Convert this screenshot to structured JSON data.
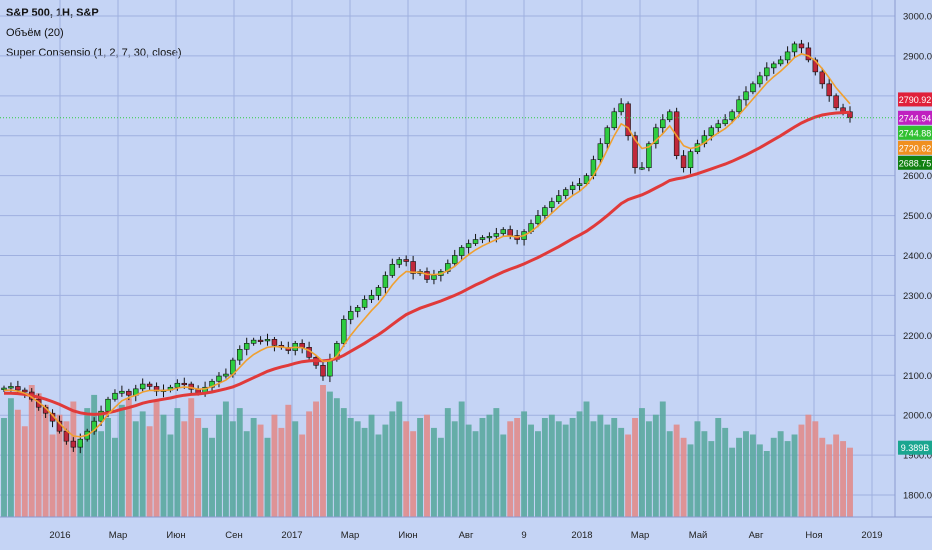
{
  "header": {
    "title": "S&P 500, 1H, S&P",
    "volume_indicator": "Объём (20)",
    "consensio_indicator": "Super Consensio (1, 2, 7, 30, close)"
  },
  "colors": {
    "background": "#c5d4f5",
    "grid": "#9fb0e0",
    "up_candle": "#2ecc40",
    "down_candle": "#c0283a",
    "ma_fast": "#f0a030",
    "ma_slow": "#e03a3a",
    "volume_up": "#5aa9a0",
    "volume_down": "#e08c8c",
    "current_line": "#2ecc40"
  },
  "chart_data": {
    "type": "candlestick",
    "symbol": "S&P 500, 1H, S&P",
    "x_ticks": [
      "2016",
      "Мар",
      "Июн",
      "Сен",
      "2017",
      "Мар",
      "Июн",
      "Авг",
      "9",
      "2018",
      "Мар",
      "Май",
      "Авг",
      "Ноя",
      "2019"
    ],
    "y_ticks": [
      "3000.00",
      "2900.00",
      "2800.00",
      "2700.00",
      "2600.00",
      "2500.00",
      "2400.00",
      "2300.00",
      "2200.00",
      "2100.00",
      "2000.00",
      "1900.00",
      "1800.00"
    ],
    "ylim": [
      1745,
      3040
    ],
    "close_series": [
      2068,
      2072,
      2063,
      2058,
      2040,
      2020,
      2005,
      1985,
      1960,
      1935,
      1920,
      1940,
      1960,
      1985,
      2010,
      2040,
      2055,
      2060,
      2050,
      2066,
      2078,
      2072,
      2060,
      2063,
      2070,
      2080,
      2078,
      2065,
      2055,
      2070,
      2085,
      2098,
      2103,
      2138,
      2165,
      2180,
      2188,
      2186,
      2190,
      2175,
      2170,
      2162,
      2180,
      2170,
      2145,
      2125,
      2098,
      2140,
      2180,
      2240,
      2260,
      2270,
      2290,
      2300,
      2320,
      2350,
      2378,
      2390,
      2385,
      2355,
      2360,
      2340,
      2350,
      2360,
      2380,
      2400,
      2420,
      2430,
      2440,
      2445,
      2448,
      2455,
      2465,
      2450,
      2440,
      2460,
      2480,
      2500,
      2520,
      2535,
      2550,
      2565,
      2575,
      2580,
      2600,
      2640,
      2680,
      2720,
      2760,
      2780,
      2700,
      2620,
      2620,
      2680,
      2720,
      2740,
      2760,
      2650,
      2620,
      2660,
      2680,
      2700,
      2720,
      2730,
      2740,
      2760,
      2790,
      2810,
      2830,
      2850,
      2870,
      2880,
      2890,
      2910,
      2930,
      2920,
      2890,
      2860,
      2830,
      2800,
      2770,
      2760,
      2745
    ],
    "ma_fast_series": [
      2062,
      2063,
      2060,
      2055,
      2045,
      2032,
      2018,
      2000,
      1980,
      1962,
      1948,
      1946,
      1950,
      1962,
      1980,
      2002,
      2020,
      2036,
      2044,
      2050,
      2058,
      2062,
      2062,
      2062,
      2063,
      2068,
      2071,
      2069,
      2065,
      2066,
      2072,
      2080,
      2088,
      2102,
      2120,
      2138,
      2152,
      2162,
      2170,
      2172,
      2171,
      2168,
      2170,
      2169,
      2162,
      2150,
      2135,
      2136,
      2148,
      2175,
      2200,
      2222,
      2242,
      2262,
      2280,
      2302,
      2326,
      2346,
      2360,
      2358,
      2358,
      2353,
      2352,
      2354,
      2362,
      2373,
      2388,
      2402,
      2414,
      2424,
      2432,
      2440,
      2448,
      2449,
      2446,
      2450,
      2460,
      2474,
      2490,
      2506,
      2522,
      2537,
      2550,
      2561,
      2576,
      2600,
      2630,
      2665,
      2700,
      2730,
      2720,
      2690,
      2668,
      2672,
      2688,
      2705,
      2725,
      2700,
      2675,
      2668,
      2672,
      2682,
      2695,
      2707,
      2718,
      2733,
      2752,
      2772,
      2792,
      2812,
      2832,
      2848,
      2862,
      2878,
      2896,
      2905,
      2900,
      2888,
      2868,
      2845,
      2820,
      2800,
      2780
    ],
    "ma_slow_series": [
      2055,
      2055,
      2054,
      2052,
      2049,
      2045,
      2040,
      2034,
      2027,
      2019,
      2011,
      2006,
      2003,
      2002,
      2003,
      2006,
      2010,
      2015,
      2019,
      2024,
      2030,
      2034,
      2037,
      2040,
      2043,
      2047,
      2050,
      2052,
      2053,
      2055,
      2058,
      2062,
      2066,
      2071,
      2078,
      2086,
      2094,
      2102,
      2110,
      2116,
      2121,
      2125,
      2130,
      2134,
      2136,
      2137,
      2136,
      2138,
      2142,
      2150,
      2160,
      2170,
      2180,
      2191,
      2202,
      2214,
      2227,
      2240,
      2252,
      2260,
      2268,
      2274,
      2280,
      2286,
      2293,
      2300,
      2308,
      2317,
      2326,
      2334,
      2343,
      2351,
      2359,
      2366,
      2372,
      2379,
      2387,
      2395,
      2404,
      2413,
      2422,
      2432,
      2442,
      2451,
      2461,
      2473,
      2486,
      2500,
      2515,
      2530,
      2540,
      2546,
      2552,
      2560,
      2569,
      2578,
      2588,
      2592,
      2595,
      2600,
      2605,
      2611,
      2617,
      2623,
      2629,
      2636,
      2644,
      2652,
      2661,
      2670,
      2680,
      2690,
      2700,
      2711,
      2722,
      2732,
      2740,
      2747,
      2752,
      2755,
      2757,
      2758,
      2759
    ],
    "volume_series": [
      60,
      72,
      65,
      55,
      80,
      75,
      68,
      50,
      62,
      58,
      70,
      45,
      66,
      74,
      52,
      60,
      48,
      68,
      72,
      58,
      64,
      55,
      70,
      62,
      50,
      66,
      58,
      72,
      60,
      54,
      48,
      62,
      70,
      58,
      66,
      52,
      60,
      56,
      48,
      62,
      54,
      68,
      58,
      50,
      64,
      70,
      80,
      76,
      72,
      66,
      60,
      58,
      54,
      62,
      50,
      56,
      64,
      70,
      58,
      52,
      60,
      62,
      54,
      48,
      66,
      58,
      70,
      56,
      52,
      60,
      62,
      66,
      50,
      58,
      60,
      64,
      56,
      52,
      60,
      62,
      58,
      56,
      60,
      64,
      70,
      58,
      62,
      56,
      60,
      54,
      50,
      60,
      66,
      58,
      62,
      70,
      52,
      56,
      48,
      44,
      58,
      52,
      46,
      60,
      54,
      42,
      48,
      52,
      50,
      44,
      40,
      48,
      52,
      46,
      50,
      56,
      62,
      58,
      48,
      44,
      50,
      46,
      42
    ],
    "volume_label": "9.389B",
    "price_labels": [
      {
        "text": "2790.92",
        "value": 2790.92,
        "color": "#e0203a"
      },
      {
        "text": "2744.94",
        "value": 2744.94,
        "color": "#c020c0"
      },
      {
        "text": "2744.88",
        "value": 2744.88,
        "color": "#30c030"
      },
      {
        "text": "2720.62",
        "value": 2720.62,
        "color": "#f09020"
      },
      {
        "text": "2688.75",
        "value": 2688.75,
        "color": "#108010"
      }
    ],
    "current_price": 2744.94
  }
}
